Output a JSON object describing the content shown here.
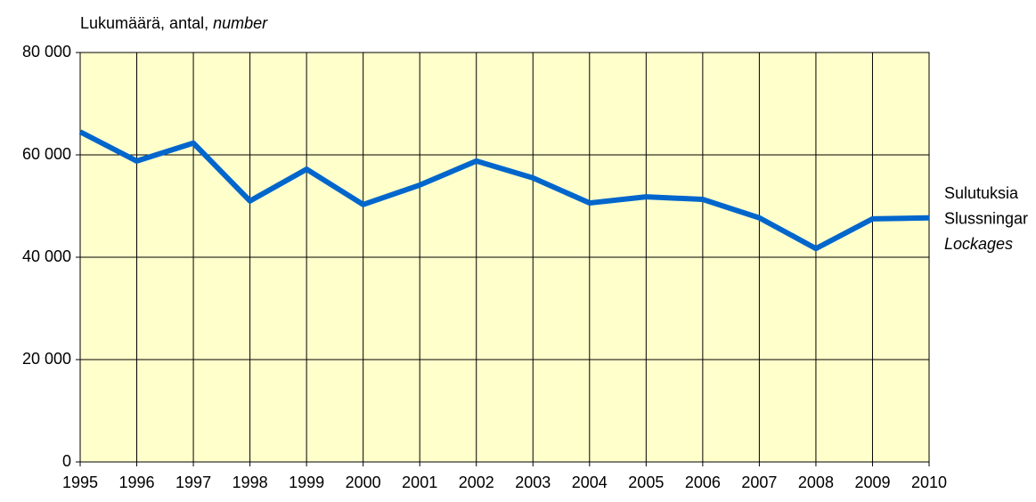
{
  "chart_data": {
    "type": "line",
    "ylabel": "Lukumäärä, antal,",
    "ylabel_italic": "number",
    "categories": [
      "1995",
      "1996",
      "1997",
      "1998",
      "1999",
      "2000",
      "2001",
      "2002",
      "2003",
      "2004",
      "2005",
      "2006",
      "2007",
      "2008",
      "2009",
      "2010"
    ],
    "series": [
      {
        "name": [
          "Sulutuksia",
          "Slussningar",
          "Lockages"
        ],
        "color": "#0066cc",
        "values": [
          64500,
          58800,
          62300,
          51000,
          57200,
          50300,
          54100,
          58800,
          55500,
          50600,
          51800,
          51300,
          47700,
          41700,
          47500,
          47700
        ]
      }
    ],
    "ylim": [
      0,
      80000
    ],
    "yticks": [
      0,
      {
        "value": 20000,
        "label": "20 000"
      },
      {
        "value": 40000,
        "label": "40 000"
      },
      {
        "value": 60000,
        "label": "60 000"
      },
      {
        "value": 80000,
        "label": "80 000"
      }
    ],
    "grid": true,
    "background": "#ffffcc"
  }
}
